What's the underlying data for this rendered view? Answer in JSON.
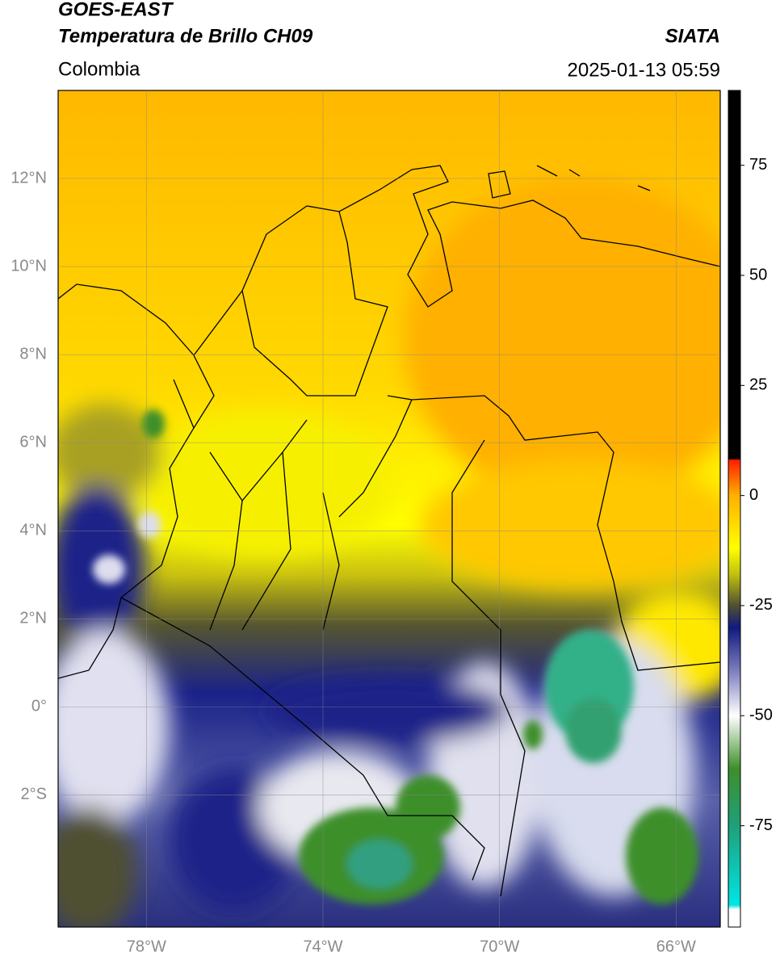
{
  "header": {
    "satellite": "GOES-EAST",
    "title": "Temperatura de Brillo CH09",
    "source": "SIATA",
    "region": "Colombia",
    "datetime": "2025-01-13 05:59"
  },
  "map": {
    "xlim": [
      -80,
      -65
    ],
    "ylim": [
      -5,
      14
    ],
    "xticks": [
      {
        "value": -78,
        "label": "78°W"
      },
      {
        "value": -74,
        "label": "74°W"
      },
      {
        "value": -70,
        "label": "70°W"
      },
      {
        "value": -66,
        "label": "66°W"
      }
    ],
    "yticks": [
      {
        "value": 12,
        "label": "12°N"
      },
      {
        "value": 10,
        "label": "10°N"
      },
      {
        "value": 8,
        "label": "8°N"
      },
      {
        "value": 6,
        "label": "6°N"
      },
      {
        "value": 4,
        "label": "4°N"
      },
      {
        "value": 2,
        "label": "2°N"
      },
      {
        "value": 0,
        "label": "0°"
      },
      {
        "value": -2,
        "label": "2°S"
      }
    ],
    "grid": true
  },
  "colorbar": {
    "lim": [
      -98,
      92
    ],
    "ticks": [
      75,
      50,
      25,
      0,
      -25,
      -50,
      -75
    ],
    "colors": [
      {
        "value": -98,
        "color": "#ffffff"
      },
      {
        "value": -94,
        "color": "#ffffff"
      },
      {
        "value": -93,
        "color": "#00e5e5"
      },
      {
        "value": -75,
        "color": "#1fa07a"
      },
      {
        "value": -62,
        "color": "#3d8f2a"
      },
      {
        "value": -50,
        "color": "#ffffff"
      },
      {
        "value": -40,
        "color": "#7f80c0"
      },
      {
        "value": -30,
        "color": "#101a80"
      },
      {
        "value": -25,
        "color": "#505030"
      },
      {
        "value": -18,
        "color": "#bfbf10"
      },
      {
        "value": -12,
        "color": "#ffff00"
      },
      {
        "value": 0,
        "color": "#ffb000"
      },
      {
        "value": 8,
        "color": "#ff2000"
      },
      {
        "value": 8.4,
        "color": "#000000"
      },
      {
        "value": 92,
        "color": "#000000"
      }
    ]
  }
}
